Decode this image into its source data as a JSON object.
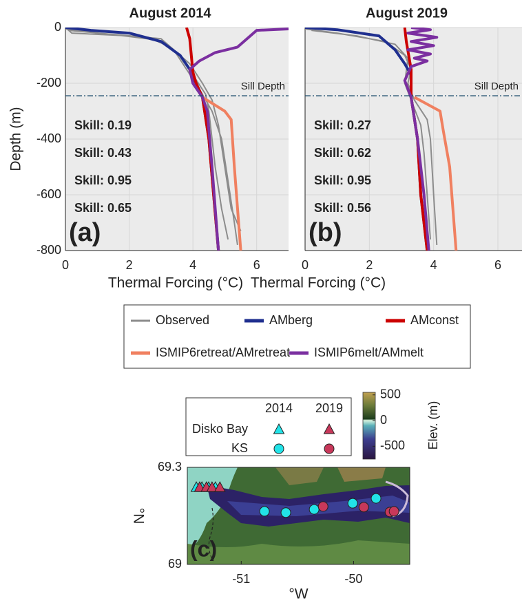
{
  "chart_data": [
    {
      "type": "line",
      "title": "August 2014",
      "xlabel": "Thermal Forcing (°C)",
      "ylabel": "Depth (m)",
      "panel_label": "(a)",
      "xlim": [
        0,
        7
      ],
      "ylim": [
        -800,
        0
      ],
      "xticks": [
        0,
        2,
        4,
        6
      ],
      "yticks": [
        0,
        -200,
        -400,
        -600,
        -800
      ],
      "grid": true,
      "sill": {
        "label": "Sill Depth",
        "value": -245
      },
      "annotations": [
        {
          "text": "Skill: 0.19",
          "color": "#7b2fa0"
        },
        {
          "text": "Skill: 0.43",
          "color": "#f08060"
        },
        {
          "text": "Skill: 0.95",
          "color": "#1f2f8f"
        },
        {
          "text": "Skill: 0.65",
          "color": "#cc0000"
        }
      ],
      "series": [
        {
          "name": "Observed",
          "color": "#8c8c8c",
          "width": 2,
          "x": [
            0,
            0.2,
            2,
            3,
            3.4,
            3.8,
            4.2,
            4.6,
            4.9,
            5.1,
            5.3,
            5.4,
            null,
            0,
            1,
            2.6,
            3.3,
            3.9,
            4.3,
            4.6,
            4.8,
            5,
            5.2,
            5.5,
            null,
            0.1,
            1.5,
            2.9,
            3.6,
            4,
            4.4,
            4.5,
            4.6,
            4.7,
            4.9,
            5.1
          ],
          "y": [
            0,
            -20,
            -30,
            -40,
            -80,
            -150,
            -220,
            -300,
            -400,
            -550,
            -700,
            -780,
            null,
            -5,
            -20,
            -35,
            -70,
            -130,
            -200,
            -260,
            -350,
            -500,
            -650,
            -730,
            null,
            -10,
            -25,
            -45,
            -100,
            -170,
            -240,
            -300,
            -400,
            -500,
            -650,
            -760
          ]
        },
        {
          "name": "AMberg",
          "color": "#1f2f8f",
          "width": 4,
          "x": [
            0,
            0.8,
            2,
            3,
            3.6,
            3.9,
            4.1,
            4.3,
            4.5,
            4.65,
            4.8
          ],
          "y": [
            0,
            -10,
            -20,
            -50,
            -100,
            -150,
            -200,
            -250,
            -400,
            -600,
            -800
          ]
        },
        {
          "name": "AMconst",
          "color": "#cc0000",
          "width": 4,
          "x": [
            3.8,
            3.9,
            3.95,
            4,
            4.1,
            4.3,
            4.5,
            4.65,
            4.8
          ],
          "y": [
            0,
            -40,
            -100,
            -160,
            -200,
            -250,
            -400,
            -600,
            -800
          ]
        },
        {
          "name": "ISMIP6retreat/AMretreat",
          "color": "#f08060",
          "width": 4,
          "x": [
            4.3,
            5,
            5.2,
            5.3,
            5.5
          ],
          "y": [
            -250,
            -300,
            -330,
            -500,
            -800
          ]
        },
        {
          "name": "ISMIP6melt/AMmelt",
          "color": "#7b2fa0",
          "width": 4,
          "x": [
            7,
            6,
            5.9,
            5.4,
            4.7,
            4.2,
            3.9,
            4,
            4.3,
            4.45,
            4.6,
            4.8
          ],
          "y": [
            -5,
            -10,
            -20,
            -70,
            -90,
            -120,
            -150,
            -200,
            -250,
            -300,
            -500,
            -800
          ]
        }
      ]
    },
    {
      "type": "line",
      "title": "August 2019",
      "xlabel": "Thermal Forcing (°C)",
      "panel_label": "(b)",
      "xlim": [
        0,
        6.75
      ],
      "ylim": [
        -800,
        0
      ],
      "xticks": [
        0,
        2,
        4,
        6
      ],
      "yticks": [
        0,
        -200,
        -400,
        -600,
        -800
      ],
      "grid": true,
      "sill": {
        "label": "Sill Depth",
        "value": -245
      },
      "annotations": [
        {
          "text": "Skill: 0.27",
          "color": "#7b2fa0"
        },
        {
          "text": "Skill: 0.62",
          "color": "#f08060"
        },
        {
          "text": "Skill: 0.95",
          "color": "#1f2f8f"
        },
        {
          "text": "Skill: 0.56",
          "color": "#cc0000"
        }
      ],
      "series": [
        {
          "name": "Observed",
          "color": "#8c8c8c",
          "width": 2,
          "x": [
            0,
            1,
            2.5,
            3.1,
            3.3,
            3.2,
            3.4,
            3.8,
            3.9,
            4,
            4.1,
            null,
            0.2,
            1.6,
            2.8,
            3.2,
            3.1,
            3.3,
            3.6,
            3.7,
            3.8,
            3.9
          ],
          "y": [
            -5,
            -20,
            -50,
            -100,
            -150,
            -200,
            -260,
            -330,
            -400,
            -600,
            -780,
            null,
            -10,
            -30,
            -60,
            -110,
            -200,
            -260,
            -350,
            -450,
            -600,
            -760
          ]
        },
        {
          "name": "AMberg",
          "color": "#1f2f8f",
          "width": 4,
          "x": [
            0,
            1,
            2.3,
            2.8,
            3.1,
            3.3,
            3.3,
            3.5,
            3.6,
            3.8
          ],
          "y": [
            0,
            -8,
            -30,
            -80,
            -130,
            -170,
            -250,
            -400,
            -600,
            -800
          ]
        },
        {
          "name": "AMconst",
          "color": "#cc0000",
          "width": 4,
          "x": [
            3.1,
            3.15,
            3.3,
            3.3,
            3.5,
            3.6,
            3.8
          ],
          "y": [
            0,
            -50,
            -150,
            -250,
            -400,
            -600,
            -800
          ]
        },
        {
          "name": "ISMIP6retreat/AMretreat",
          "color": "#f08060",
          "width": 4,
          "x": [
            3.4,
            4.2,
            4.3,
            4.5,
            4.7
          ],
          "y": [
            -250,
            -300,
            -370,
            -500,
            -800
          ]
        },
        {
          "name": "ISMIP6melt/AMmelt",
          "color": "#7b2fa0",
          "width": 4,
          "x": [
            3.3,
            3.9,
            3.2,
            4.1,
            3.3,
            4,
            3.2,
            3.9,
            3.4,
            3.8,
            3.3,
            3.1,
            3.3,
            3.5,
            3.7,
            3.85
          ],
          "y": [
            0,
            -8,
            -20,
            -35,
            -50,
            -65,
            -80,
            -95,
            -110,
            -120,
            -140,
            -190,
            -250,
            -400,
            -600,
            -800
          ]
        }
      ]
    },
    {
      "type": "map",
      "xlabel": "°W",
      "ylabel": "°N",
      "panel_label": "(c)",
      "xlim": [
        -51.48,
        -49.5
      ],
      "ylim": [
        69,
        69.3
      ],
      "xticks": [
        -51,
        -50
      ],
      "yticks": [
        69,
        69.3
      ],
      "columns": [
        {
          "name": "2014",
          "color": "#22e3e8"
        },
        {
          "name": "2019",
          "color": "#c8385a"
        }
      ],
      "rows": [
        {
          "name": "Disko Bay",
          "marker": "triangle",
          "columns": [
            {
              "x": [
                -51.4,
                -51.35,
                -51.29,
                -51.23
              ],
              "y": [
                69.238,
                69.238,
                69.238,
                69.238
              ]
            },
            {
              "x": [
                -51.37,
                -51.31,
                -51.26,
                -51.19
              ],
              "y": [
                69.238,
                69.238,
                69.238,
                69.238
              ]
            }
          ]
        },
        {
          "name": "KS",
          "marker": "circle",
          "columns": [
            {
              "x": [
                -50.793,
                -50.603,
                -50.351,
                -50.008,
                -49.8
              ],
              "y": [
                69.164,
                69.16,
                69.17,
                69.189,
                69.204
              ]
            },
            {
              "x": [
                -50.271,
                -49.909,
                -49.676,
                -49.64
              ],
              "y": [
                69.179,
                69.177,
                69.162,
                69.164
              ]
            }
          ]
        }
      ],
      "colorbar": {
        "label": "Elev. (m)",
        "lim": [
          -750,
          550
        ],
        "ticks": [
          -500,
          0,
          500
        ]
      }
    }
  ]
}
